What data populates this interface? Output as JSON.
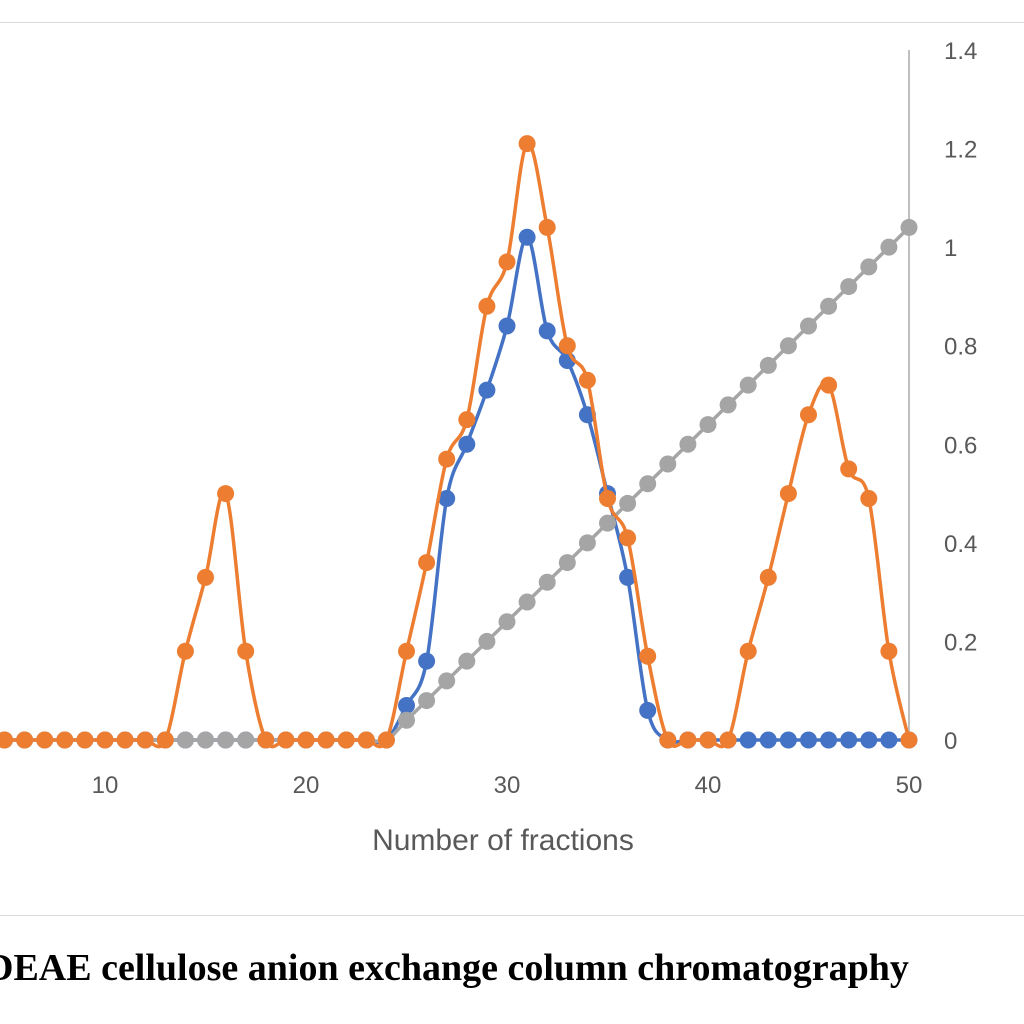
{
  "chart_data": {
    "type": "line",
    "title": "",
    "xlabel": "Number of fractions",
    "ylabel_right": "",
    "x_ticks": [
      10,
      20,
      30,
      40,
      50
    ],
    "y_right_ticks": [
      "0",
      "0.2",
      "0.4",
      "0.6",
      "0.8",
      "1",
      "1.2",
      "1.4"
    ],
    "xlim": [
      5,
      50
    ],
    "ylim_right": [
      0,
      1.4
    ],
    "grid": false,
    "series": [
      {
        "color": "#4472C4",
        "x": [
          1,
          2,
          3,
          4,
          5,
          6,
          7,
          8,
          9,
          10,
          11,
          12,
          13,
          14,
          15,
          16,
          17,
          18,
          19,
          20,
          21,
          22,
          23,
          24,
          25,
          26,
          27,
          28,
          29,
          30,
          31,
          32,
          33,
          34,
          35,
          36,
          37,
          38,
          39,
          40,
          41,
          42,
          43,
          44,
          45,
          46,
          47,
          48,
          49,
          50
        ],
        "y": [
          0,
          0,
          0,
          0,
          0,
          0,
          0,
          0,
          0,
          0,
          0,
          0,
          0,
          0,
          0,
          0,
          0,
          0,
          0,
          0,
          0,
          0,
          0,
          0,
          0.07,
          0.16,
          0.49,
          0.6,
          0.71,
          0.84,
          1.02,
          0.83,
          0.77,
          0.66,
          0.5,
          0.33,
          0.06,
          0,
          0,
          0,
          0,
          0,
          0,
          0,
          0,
          0,
          0,
          0,
          0,
          0
        ]
      },
      {
        "color": "#ED7D31",
        "x": [
          1,
          2,
          3,
          4,
          5,
          6,
          7,
          8,
          9,
          10,
          11,
          12,
          13,
          14,
          15,
          16,
          17,
          18,
          19,
          20,
          21,
          22,
          23,
          24,
          25,
          26,
          27,
          28,
          29,
          30,
          31,
          32,
          33,
          34,
          35,
          36,
          37,
          38,
          39,
          40,
          41,
          42,
          43,
          44,
          45,
          46,
          47,
          48,
          49,
          50
        ],
        "y": [
          0,
          0,
          0,
          0,
          0,
          0,
          0,
          0,
          0,
          0,
          0,
          0,
          0,
          0.18,
          0.33,
          0.5,
          0.18,
          0,
          0,
          0,
          0,
          0,
          0,
          0,
          0.18,
          0.36,
          0.57,
          0.65,
          0.88,
          0.97,
          1.21,
          1.04,
          0.8,
          0.73,
          0.49,
          0.41,
          0.17,
          0,
          0,
          0,
          0,
          0.18,
          0.33,
          0.5,
          0.66,
          0.72,
          0.55,
          0.49,
          0.18,
          0
        ]
      },
      {
        "color": "#A5A5A5",
        "x": [
          1,
          2,
          3,
          4,
          5,
          6,
          7,
          8,
          9,
          10,
          11,
          12,
          13,
          14,
          15,
          16,
          17,
          18,
          19,
          20,
          21,
          22,
          23,
          24,
          25,
          26,
          27,
          28,
          29,
          30,
          31,
          32,
          33,
          34,
          35,
          36,
          37,
          38,
          39,
          40,
          41,
          42,
          43,
          44,
          45,
          46,
          47,
          48,
          49,
          50
        ],
        "y": [
          0,
          0,
          0,
          0,
          0,
          0,
          0,
          0,
          0,
          0,
          0,
          0,
          0,
          0,
          0,
          0,
          0,
          0,
          0,
          0,
          0,
          0,
          0,
          0,
          0.04,
          0.08,
          0.12,
          0.16,
          0.2,
          0.24,
          0.28,
          0.32,
          0.36,
          0.4,
          0.44,
          0.48,
          0.52,
          0.56,
          0.6,
          0.64,
          0.68,
          0.72,
          0.76,
          0.8,
          0.84,
          0.88,
          0.92,
          0.96,
          1.0,
          1.04
        ]
      }
    ]
  },
  "caption": "DEAE cellulose anion exchange column chromatography"
}
